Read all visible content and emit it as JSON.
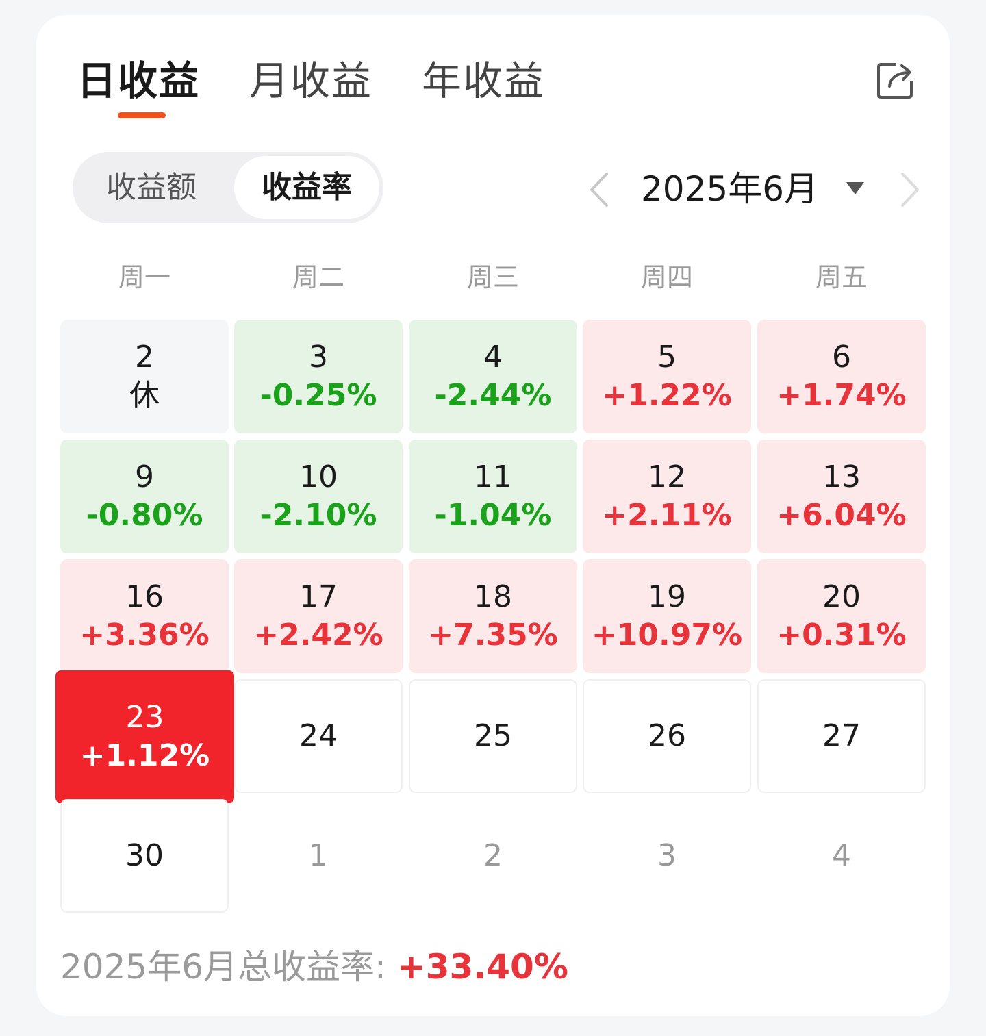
{
  "tabs": [
    "日收益",
    "月收益",
    "年收益"
  ],
  "segment": {
    "options": [
      "收益额",
      "收益率"
    ],
    "selected": 1
  },
  "month_label": "2025年6月",
  "weekdays": [
    "周一",
    "周二",
    "周三",
    "周四",
    "周五"
  ],
  "weeks": [
    [
      {
        "day": "2",
        "value": "休",
        "state": "off"
      },
      {
        "day": "3",
        "value": "-0.25%",
        "state": "down"
      },
      {
        "day": "4",
        "value": "-2.44%",
        "state": "down"
      },
      {
        "day": "5",
        "value": "+1.22%",
        "state": "up"
      },
      {
        "day": "6",
        "value": "+1.74%",
        "state": "up"
      }
    ],
    [
      {
        "day": "9",
        "value": "-0.80%",
        "state": "down"
      },
      {
        "day": "10",
        "value": "-2.10%",
        "state": "down"
      },
      {
        "day": "11",
        "value": "-1.04%",
        "state": "down"
      },
      {
        "day": "12",
        "value": "+2.11%",
        "state": "up"
      },
      {
        "day": "13",
        "value": "+6.04%",
        "state": "up"
      }
    ],
    [
      {
        "day": "16",
        "value": "+3.36%",
        "state": "up"
      },
      {
        "day": "17",
        "value": "+2.42%",
        "state": "up"
      },
      {
        "day": "18",
        "value": "+7.35%",
        "state": "up"
      },
      {
        "day": "19",
        "value": "+10.97%",
        "state": "up"
      },
      {
        "day": "20",
        "value": "+0.31%",
        "state": "up"
      }
    ],
    [
      {
        "day": "23",
        "value": "+1.12%",
        "state": "selected"
      },
      {
        "day": "24",
        "value": "",
        "state": "empty"
      },
      {
        "day": "25",
        "value": "",
        "state": "empty"
      },
      {
        "day": "26",
        "value": "",
        "state": "empty"
      },
      {
        "day": "27",
        "value": "",
        "state": "empty"
      }
    ],
    [
      {
        "day": "30",
        "value": "",
        "state": "empty"
      },
      {
        "day": "1",
        "value": "",
        "state": "next"
      },
      {
        "day": "2",
        "value": "",
        "state": "next"
      },
      {
        "day": "3",
        "value": "",
        "state": "next"
      },
      {
        "day": "4",
        "value": "",
        "state": "next"
      }
    ]
  ],
  "summary": {
    "label": "2025年6月总收益率: ",
    "value": "+33.40%"
  },
  "icons": {
    "share": "share-icon",
    "prev": "chevron-left-icon",
    "next": "chevron-right-icon",
    "dropdown": "caret-down-icon"
  },
  "colors": {
    "accent": "#f0541e",
    "up": "#e8333a",
    "down": "#1ba21b",
    "selected": "#f0242a"
  }
}
